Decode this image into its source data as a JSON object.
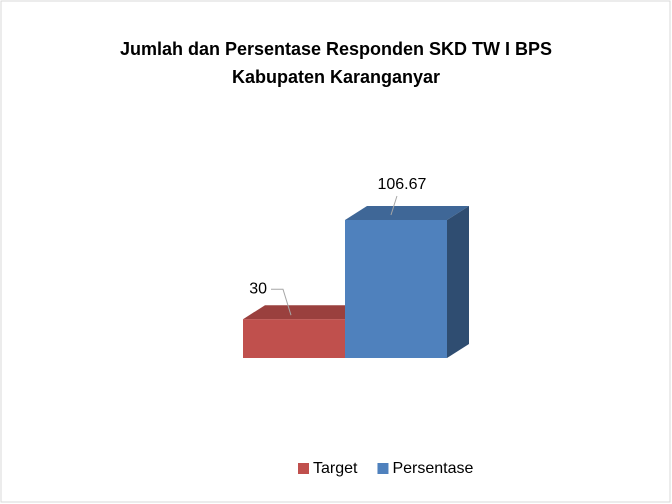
{
  "chart_data": {
    "type": "bar3d",
    "title": [
      "Jumlah dan Persentase Responden SKD TW I BPS",
      "Kabupaten Karanganyar"
    ],
    "categories": [
      null
    ],
    "series": [
      {
        "name": "Target",
        "color": "#c0504d",
        "values": [
          30
        ]
      },
      {
        "name": "Persentase",
        "color": "#4f81bd",
        "values": [
          106.67
        ]
      }
    ],
    "legend": "bottom"
  }
}
